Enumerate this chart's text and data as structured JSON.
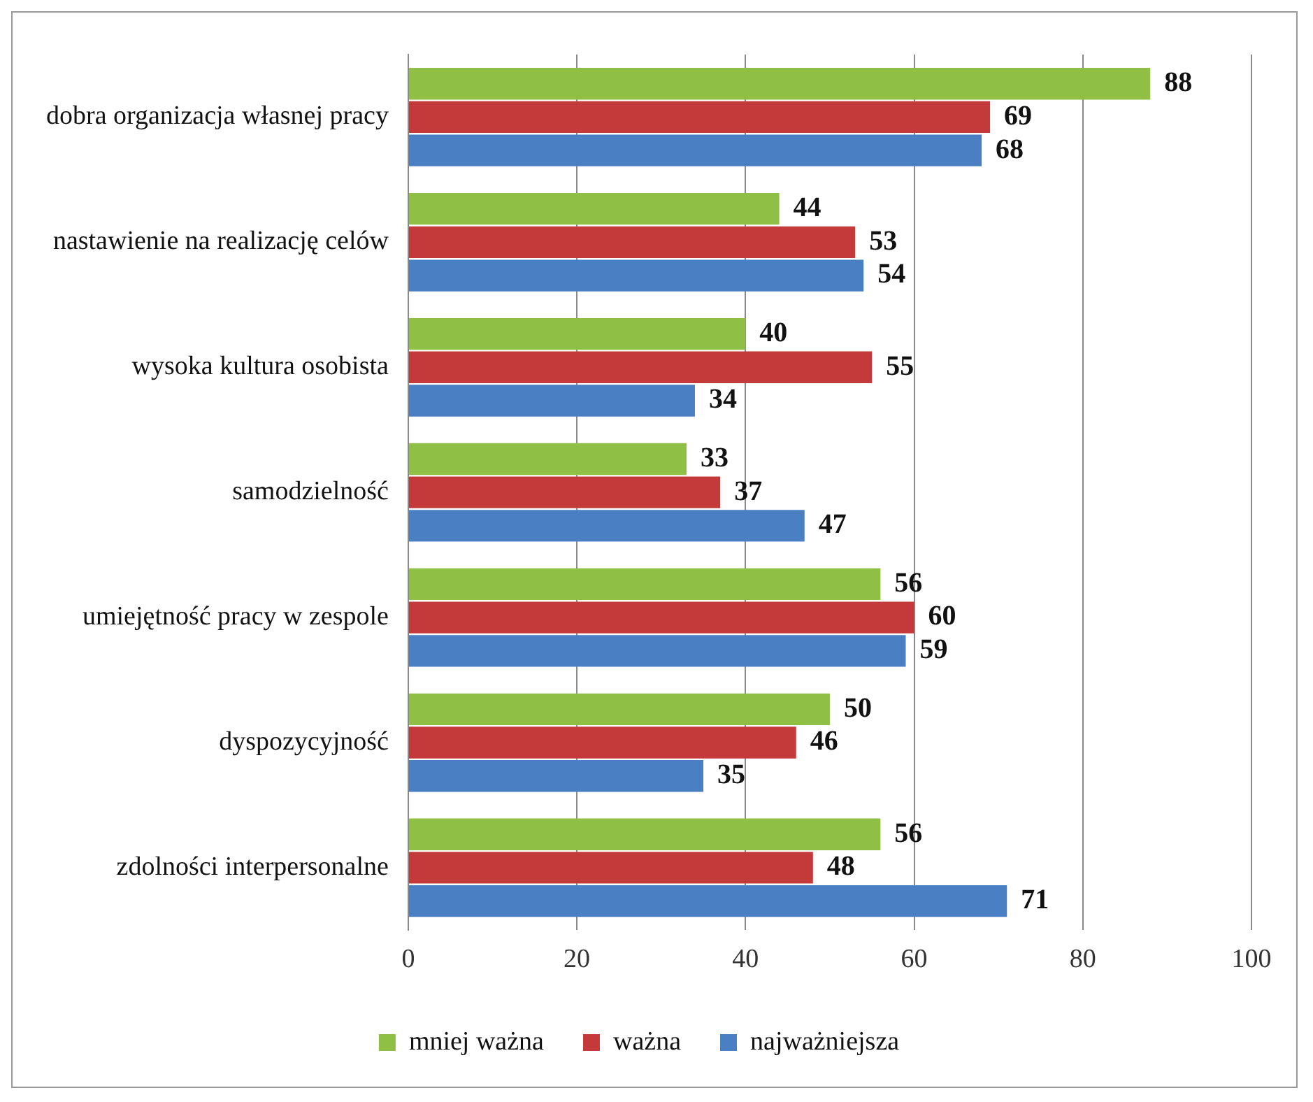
{
  "chart_data": {
    "type": "bar",
    "orientation": "horizontal",
    "categories": [
      "dobra organizacja własnej pracy",
      "nastawienie na realizację celów",
      "wysoka kultura osobista",
      "samodzielność",
      "umiejętność pracy w zespole",
      "dyspozycyjność",
      "zdolności interpersonalne"
    ],
    "series": [
      {
        "name": "mniej ważna",
        "color": "#8fbf45",
        "values": [
          88,
          44,
          40,
          33,
          56,
          50,
          56
        ]
      },
      {
        "name": "ważna",
        "color": "#c43a3a",
        "values": [
          69,
          53,
          55,
          37,
          60,
          46,
          48
        ]
      },
      {
        "name": "najważniejsza",
        "color": "#4a7fc4",
        "values": [
          68,
          54,
          34,
          47,
          59,
          35,
          71
        ]
      }
    ],
    "xlim": [
      0,
      100
    ],
    "xticks": [
      0,
      20,
      40,
      60,
      80,
      100
    ],
    "grid": "x",
    "legend": "bottom",
    "data_labels": true
  }
}
